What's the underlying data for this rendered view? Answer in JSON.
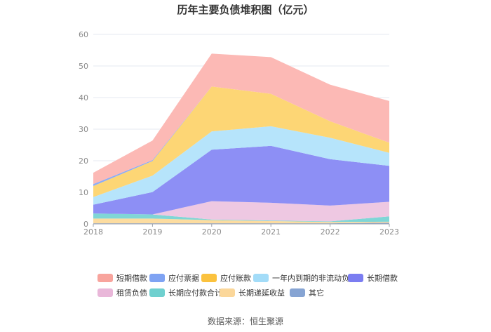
{
  "chart_data": {
    "type": "area",
    "stacked": true,
    "title": "历年主要负债堆积图（亿元）",
    "x": [
      "2018",
      "2019",
      "2020",
      "2021",
      "2022",
      "2023"
    ],
    "ylim": [
      0,
      60
    ],
    "yticks": [
      0,
      10,
      20,
      30,
      40,
      50,
      60
    ],
    "grid": true,
    "legend_position": "bottom",
    "series": [
      {
        "name": "其它",
        "color": "#8ba9d6",
        "values": [
          0.2,
          0.2,
          0.2,
          0.2,
          0.2,
          0.4
        ]
      },
      {
        "name": "长期递延收益",
        "color": "#fcdca0",
        "values": [
          1.5,
          1.5,
          1.0,
          0.7,
          0.4,
          0.3
        ]
      },
      {
        "name": "长期应付款合计",
        "color": "#7fd6d6",
        "values": [
          1.6,
          1.3,
          0.2,
          0.2,
          0.2,
          1.7
        ]
      },
      {
        "name": "租赁负债",
        "color": "#eec8e2",
        "values": [
          0.0,
          0.0,
          5.8,
          5.6,
          5.0,
          4.6
        ]
      },
      {
        "name": "长期借款",
        "color": "#8d8ff5",
        "values": [
          2.8,
          7.1,
          16.3,
          18.0,
          14.7,
          11.4
        ]
      },
      {
        "name": "一年内到期的非流动负债",
        "color": "#b6e4fb",
        "values": [
          2.4,
          5.2,
          5.8,
          6.2,
          6.8,
          4.1
        ]
      },
      {
        "name": "应付账款",
        "color": "#fdd675",
        "values": [
          3.5,
          4.6,
          14.2,
          10.3,
          5.2,
          3.2
        ]
      },
      {
        "name": "应付票据",
        "color": "#8dacf5",
        "values": [
          0.6,
          0.3,
          0.0,
          0.0,
          0.0,
          0.0
        ]
      },
      {
        "name": "短期借款",
        "color": "#fcb9b5",
        "values": [
          3.6,
          6.2,
          10.4,
          11.6,
          11.6,
          13.2
        ]
      }
    ],
    "legend_order": [
      "短期借款",
      "应付票据",
      "应付账款",
      "一年内到期的非流动负债",
      "长期借款",
      "租赁负债",
      "长期应付款合计",
      "长期递延收益",
      "其它"
    ]
  },
  "legend_swatch_colors": {
    "短期借款": "#f8a49d",
    "应付票据": "#7fa3f3",
    "应付账款": "#fbc23e",
    "一年内到期的非流动负债": "#a3dcf8",
    "长期借款": "#7b7df1",
    "租赁负债": "#e9b7d9",
    "长期应付款合计": "#6fd0cf",
    "长期递延收益": "#fbd79a",
    "其它": "#86a4d3"
  },
  "source": "数据来源：恒生聚源"
}
